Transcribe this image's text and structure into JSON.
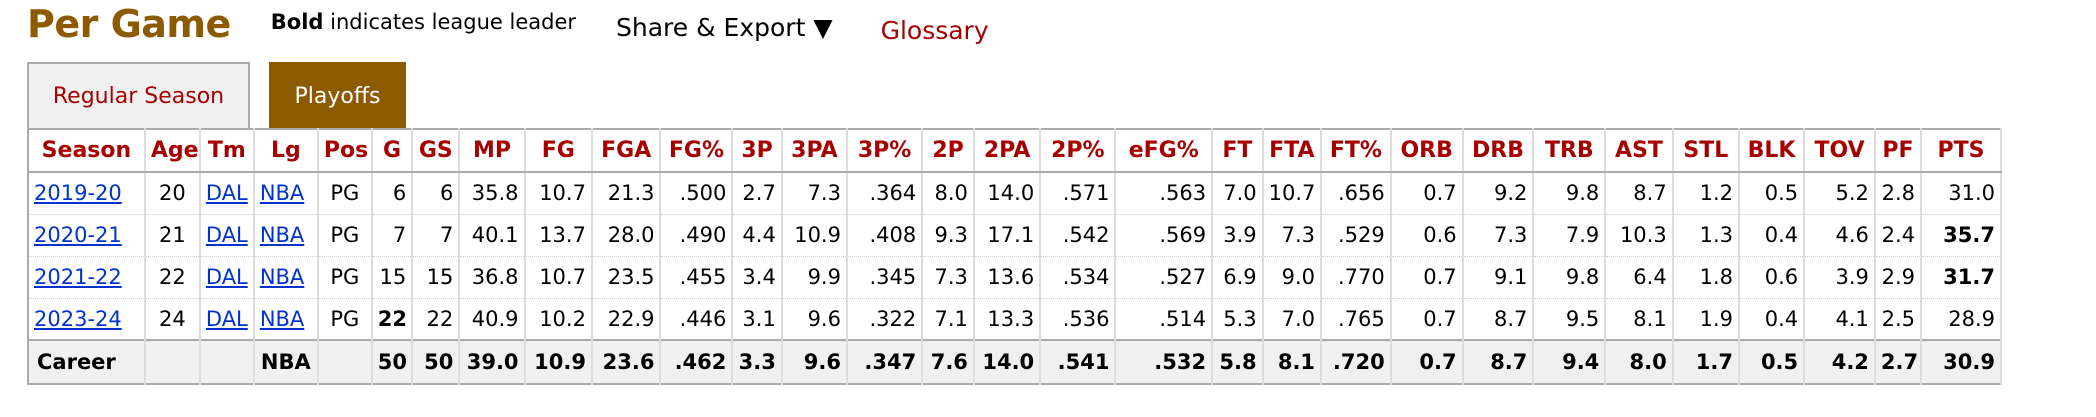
{
  "header": {
    "title": "Per Game",
    "note_bold": "Bold",
    "note_rest": " indicates league leader",
    "share_label": "Share & Export",
    "share_arrow": "▼",
    "glossary_label": "Glossary"
  },
  "tabs": [
    {
      "label": "Regular Season",
      "active": false
    },
    {
      "label": "Playoffs",
      "active": true
    }
  ],
  "columns": [
    "Season",
    "Age",
    "Tm",
    "Lg",
    "Pos",
    "G",
    "GS",
    "MP",
    "FG",
    "FGA",
    "FG%",
    "3P",
    "3PA",
    "3P%",
    "2P",
    "2PA",
    "2P%",
    "eFG%",
    "FT",
    "FTA",
    "FT%",
    "ORB",
    "DRB",
    "TRB",
    "AST",
    "STL",
    "BLK",
    "TOV",
    "PF",
    "PTS"
  ],
  "rows": [
    {
      "cells": [
        "2019-20",
        "20",
        "DAL",
        "NBA",
        "PG",
        "6",
        "6",
        "35.8",
        "10.7",
        "21.3",
        ".500",
        "2.7",
        "7.3",
        ".364",
        "8.0",
        "14.0",
        ".571",
        ".563",
        "7.0",
        "10.7",
        ".656",
        "0.7",
        "9.2",
        "9.8",
        "8.7",
        "1.2",
        "0.5",
        "5.2",
        "2.8",
        "31.0"
      ],
      "bold": []
    },
    {
      "cells": [
        "2020-21",
        "21",
        "DAL",
        "NBA",
        "PG",
        "7",
        "7",
        "40.1",
        "13.7",
        "28.0",
        ".490",
        "4.4",
        "10.9",
        ".408",
        "9.3",
        "17.1",
        ".542",
        ".569",
        "3.9",
        "7.3",
        ".529",
        "0.6",
        "7.3",
        "7.9",
        "10.3",
        "1.3",
        "0.4",
        "4.6",
        "2.4",
        "35.7"
      ],
      "bold": [
        29
      ]
    },
    {
      "cells": [
        "2021-22",
        "22",
        "DAL",
        "NBA",
        "PG",
        "15",
        "15",
        "36.8",
        "10.7",
        "23.5",
        ".455",
        "3.4",
        "9.9",
        ".345",
        "7.3",
        "13.6",
        ".534",
        ".527",
        "6.9",
        "9.0",
        ".770",
        "0.7",
        "9.1",
        "9.8",
        "6.4",
        "1.8",
        "0.6",
        "3.9",
        "2.9",
        "31.7"
      ],
      "bold": [
        29
      ]
    },
    {
      "cells": [
        "2023-24",
        "24",
        "DAL",
        "NBA",
        "PG",
        "22",
        "22",
        "40.9",
        "10.2",
        "22.9",
        ".446",
        "3.1",
        "9.6",
        ".322",
        "7.1",
        "13.3",
        ".536",
        ".514",
        "5.3",
        "7.0",
        ".765",
        "0.7",
        "8.7",
        "9.5",
        "8.1",
        "1.9",
        "0.4",
        "4.1",
        "2.5",
        "28.9"
      ],
      "bold": [
        5
      ]
    }
  ],
  "footer": [
    "Career",
    "",
    "",
    "NBA",
    "",
    "50",
    "50",
    "39.0",
    "10.9",
    "23.6",
    ".462",
    "3.3",
    "9.6",
    ".347",
    "7.6",
    "14.0",
    ".541",
    ".532",
    "5.8",
    "8.1",
    ".720",
    "0.7",
    "8.7",
    "9.4",
    "8.0",
    "1.7",
    "0.5",
    "4.2",
    "2.7",
    "30.9"
  ]
}
